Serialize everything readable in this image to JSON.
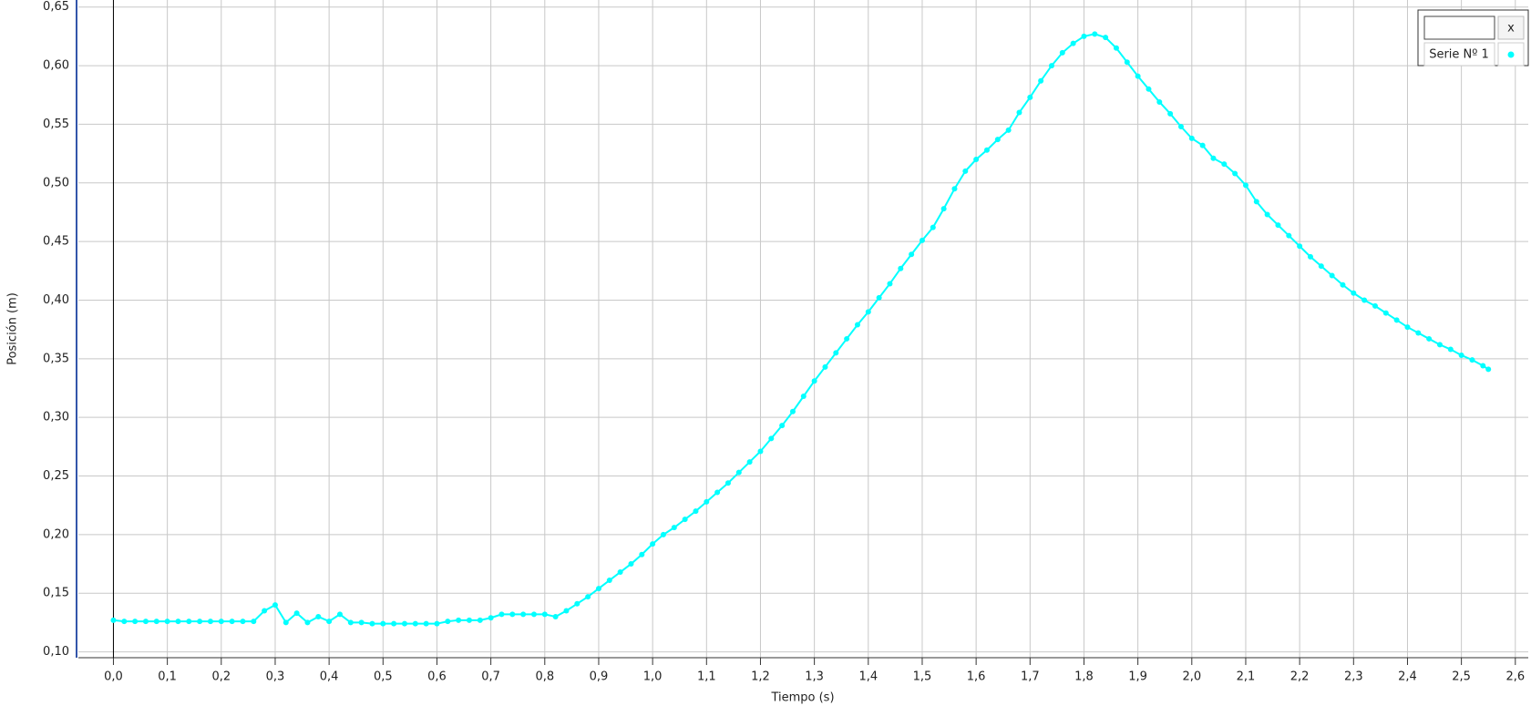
{
  "chart_data": {
    "type": "line",
    "xlabel": "Tiempo (s)",
    "ylabel": "Posición (m)",
    "legend_button": "x",
    "legend": "upper right",
    "grid": true,
    "xlim": [
      -0.065,
      2.624
    ],
    "ylim": [
      0.095,
      0.656
    ],
    "xticks": [
      {
        "value": 0.0,
        "label": "0,0"
      },
      {
        "value": 0.1,
        "label": "0,1"
      },
      {
        "value": 0.2,
        "label": "0,2"
      },
      {
        "value": 0.3,
        "label": "0,3"
      },
      {
        "value": 0.4,
        "label": "0,4"
      },
      {
        "value": 0.5,
        "label": "0,5"
      },
      {
        "value": 0.6,
        "label": "0,6"
      },
      {
        "value": 0.7,
        "label": "0,7"
      },
      {
        "value": 0.8,
        "label": "0,8"
      },
      {
        "value": 0.9,
        "label": "0,9"
      },
      {
        "value": 1.0,
        "label": "1,0"
      },
      {
        "value": 1.1,
        "label": "1,1"
      },
      {
        "value": 1.2,
        "label": "1,2"
      },
      {
        "value": 1.3,
        "label": "1,3"
      },
      {
        "value": 1.4,
        "label": "1,4"
      },
      {
        "value": 1.5,
        "label": "1,5"
      },
      {
        "value": 1.6,
        "label": "1,6"
      },
      {
        "value": 1.7,
        "label": "1,7"
      },
      {
        "value": 1.8,
        "label": "1,8"
      },
      {
        "value": 1.9,
        "label": "1,9"
      },
      {
        "value": 2.0,
        "label": "2,0"
      },
      {
        "value": 2.1,
        "label": "2,1"
      },
      {
        "value": 2.2,
        "label": "2,2"
      },
      {
        "value": 2.3,
        "label": "2,3"
      },
      {
        "value": 2.4,
        "label": "2,4"
      },
      {
        "value": 2.5,
        "label": "2,5"
      },
      {
        "value": 2.6,
        "label": "2,6"
      }
    ],
    "yticks": [
      {
        "value": 0.1,
        "label": "0,10"
      },
      {
        "value": 0.15,
        "label": "0,15"
      },
      {
        "value": 0.2,
        "label": "0,20"
      },
      {
        "value": 0.25,
        "label": "0,25"
      },
      {
        "value": 0.3,
        "label": "0,30"
      },
      {
        "value": 0.35,
        "label": "0,35"
      },
      {
        "value": 0.4,
        "label": "0,40"
      },
      {
        "value": 0.45,
        "label": "0,45"
      },
      {
        "value": 0.5,
        "label": "0,50"
      },
      {
        "value": 0.55,
        "label": "0,55"
      },
      {
        "value": 0.6,
        "label": "0,60"
      },
      {
        "value": 0.65,
        "label": "0,65"
      }
    ],
    "x": [
      0.0,
      0.02,
      0.04,
      0.06,
      0.08,
      0.1,
      0.12,
      0.14,
      0.16,
      0.18,
      0.2,
      0.22,
      0.24,
      0.26,
      0.28,
      0.3,
      0.32,
      0.34,
      0.36,
      0.38,
      0.4,
      0.42,
      0.44,
      0.46,
      0.48,
      0.5,
      0.52,
      0.54,
      0.56,
      0.58,
      0.6,
      0.62,
      0.64,
      0.66,
      0.68,
      0.7,
      0.72,
      0.74,
      0.76,
      0.78,
      0.8,
      0.82,
      0.84,
      0.86,
      0.88,
      0.9,
      0.92,
      0.94,
      0.96,
      0.98,
      1.0,
      1.02,
      1.04,
      1.06,
      1.08,
      1.1,
      1.12,
      1.14,
      1.16,
      1.18,
      1.2,
      1.22,
      1.24,
      1.26,
      1.28,
      1.3,
      1.32,
      1.34,
      1.36,
      1.38,
      1.4,
      1.42,
      1.44,
      1.46,
      1.48,
      1.5,
      1.52,
      1.54,
      1.56,
      1.58,
      1.6,
      1.62,
      1.64,
      1.66,
      1.68,
      1.7,
      1.72,
      1.74,
      1.76,
      1.78,
      1.8,
      1.82,
      1.84,
      1.86,
      1.88,
      1.9,
      1.92,
      1.94,
      1.96,
      1.98,
      2.0,
      2.02,
      2.04,
      2.06,
      2.08,
      2.1,
      2.12,
      2.14,
      2.16,
      2.18,
      2.2,
      2.22,
      2.24,
      2.26,
      2.28,
      2.3,
      2.32,
      2.34,
      2.36,
      2.38,
      2.4,
      2.42,
      2.44,
      2.46,
      2.48,
      2.5,
      2.52,
      2.54,
      2.55
    ],
    "series": [
      {
        "name": "Serie Nº 1",
        "color": "#00ffff",
        "values": [
          0.127,
          0.126,
          0.126,
          0.126,
          0.126,
          0.126,
          0.126,
          0.126,
          0.126,
          0.126,
          0.126,
          0.126,
          0.126,
          0.126,
          0.135,
          0.14,
          0.125,
          0.133,
          0.125,
          0.13,
          0.126,
          0.132,
          0.125,
          0.125,
          0.124,
          0.124,
          0.124,
          0.124,
          0.124,
          0.124,
          0.124,
          0.126,
          0.127,
          0.127,
          0.127,
          0.129,
          0.132,
          0.132,
          0.132,
          0.132,
          0.132,
          0.13,
          0.135,
          0.141,
          0.147,
          0.154,
          0.161,
          0.168,
          0.175,
          0.183,
          0.192,
          0.2,
          0.206,
          0.213,
          0.22,
          0.228,
          0.236,
          0.244,
          0.253,
          0.262,
          0.271,
          0.282,
          0.293,
          0.305,
          0.318,
          0.331,
          0.343,
          0.355,
          0.367,
          0.379,
          0.39,
          0.402,
          0.414,
          0.427,
          0.439,
          0.451,
          0.462,
          0.478,
          0.495,
          0.51,
          0.52,
          0.528,
          0.537,
          0.545,
          0.56,
          0.573,
          0.587,
          0.6,
          0.611,
          0.619,
          0.625,
          0.627,
          0.624,
          0.615,
          0.603,
          0.591,
          0.58,
          0.569,
          0.559,
          0.548,
          0.538,
          0.532,
          0.521,
          0.516,
          0.508,
          0.498,
          0.484,
          0.473,
          0.464,
          0.455,
          0.446,
          0.437,
          0.429,
          0.421,
          0.413,
          0.406,
          0.4,
          0.395,
          0.389,
          0.383,
          0.377,
          0.372,
          0.367,
          0.362,
          0.358,
          0.353,
          0.349,
          0.344,
          0.341
        ]
      }
    ]
  }
}
